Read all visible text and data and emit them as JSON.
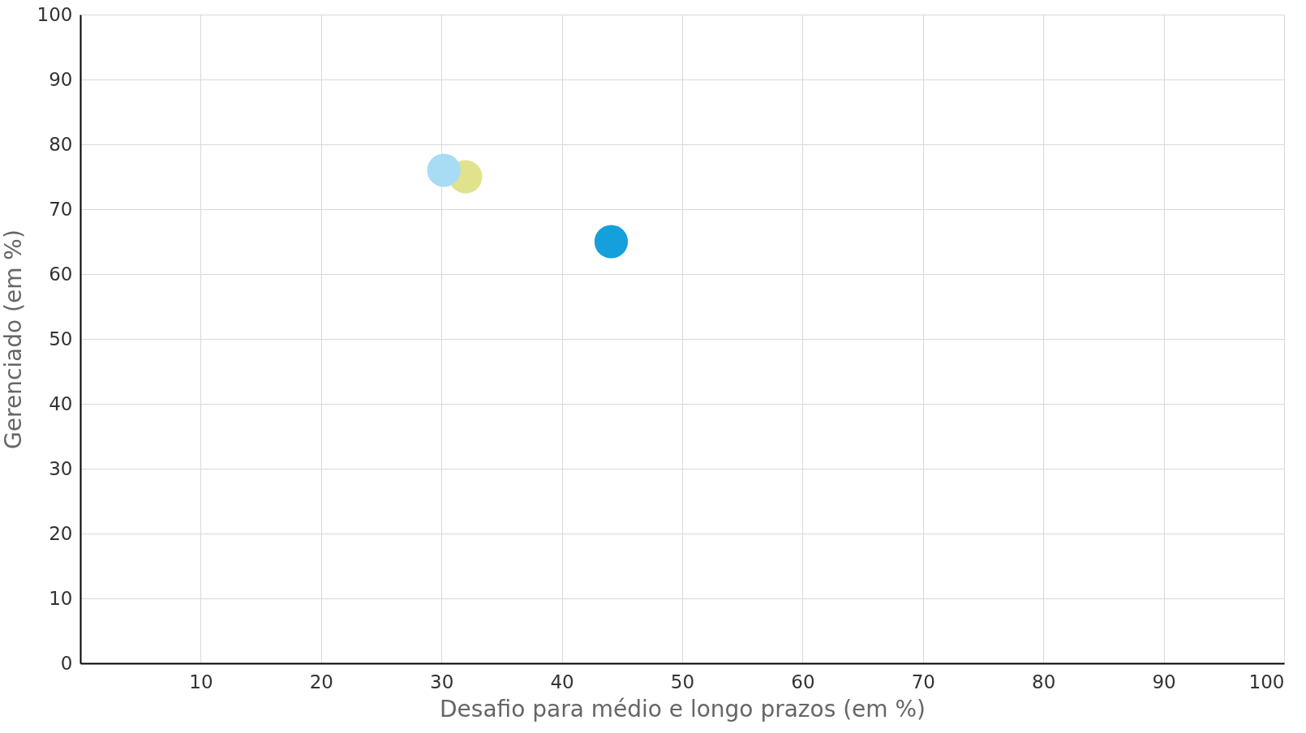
{
  "chart_data": {
    "type": "scatter",
    "xlabel": "Desafio para médio e longo prazos (em %)",
    "ylabel": "Gerenciado (em %)",
    "x": [
      32,
      30.2,
      44.1
    ],
    "values": [
      75,
      76,
      65
    ],
    "colors": [
      "#e1e28c",
      "#a8dcf5",
      "#159fdb"
    ],
    "xlim": [
      0,
      100
    ],
    "xticks": [
      10,
      20,
      30,
      40,
      50,
      60,
      70,
      80,
      90,
      100
    ],
    "ylim": [
      0,
      100
    ],
    "yticks": [
      0,
      10,
      20,
      30,
      40,
      50,
      60,
      70,
      80,
      90,
      100
    ],
    "grid": true,
    "marker": "circle"
  }
}
